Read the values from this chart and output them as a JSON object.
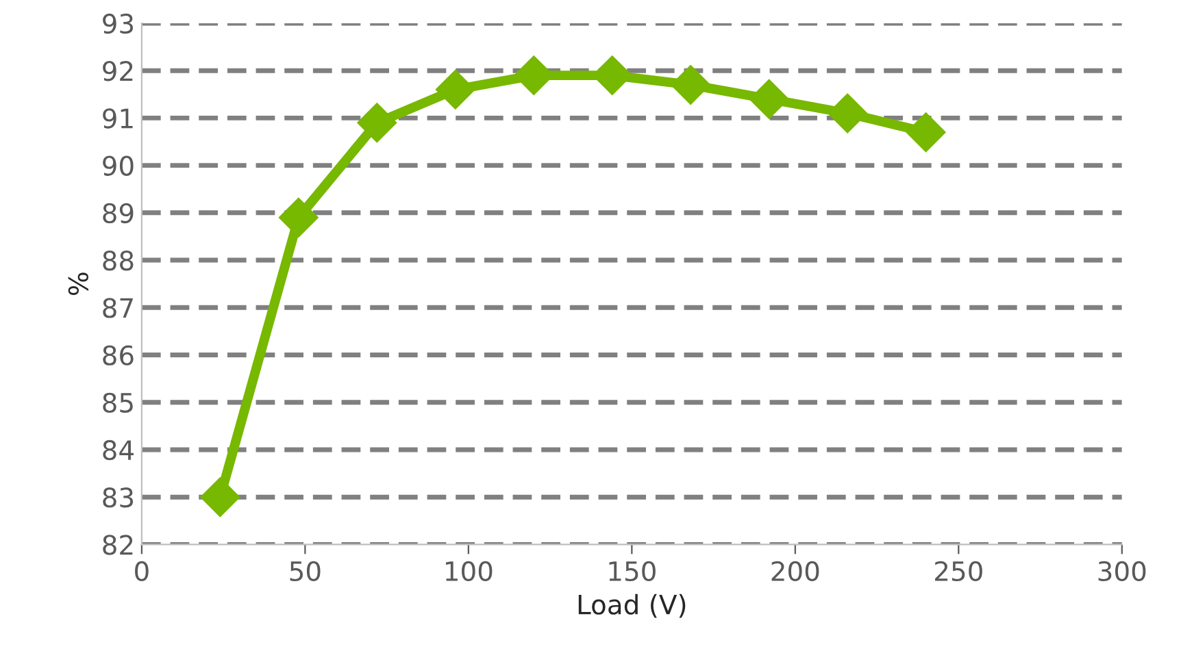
{
  "chart_data": {
    "type": "line",
    "xlabel": "Load (V)",
    "ylabel": "%",
    "x": [
      24,
      48,
      72,
      96,
      120,
      144,
      168,
      192,
      216,
      240
    ],
    "series": [
      {
        "color": "#77b800",
        "values": [
          83.0,
          88.9,
          90.9,
          91.6,
          91.9,
          91.9,
          91.7,
          91.4,
          91.1,
          90.7
        ]
      }
    ],
    "xlim": [
      0,
      300
    ],
    "xticks": [
      0,
      50,
      100,
      150,
      200,
      250,
      300
    ],
    "ylim": [
      82,
      93
    ],
    "yticks": [
      82,
      83,
      84,
      85,
      86,
      87,
      88,
      89,
      90,
      91,
      92,
      93
    ],
    "grid": "y",
    "marker": "diamond",
    "line_style": "solid"
  }
}
